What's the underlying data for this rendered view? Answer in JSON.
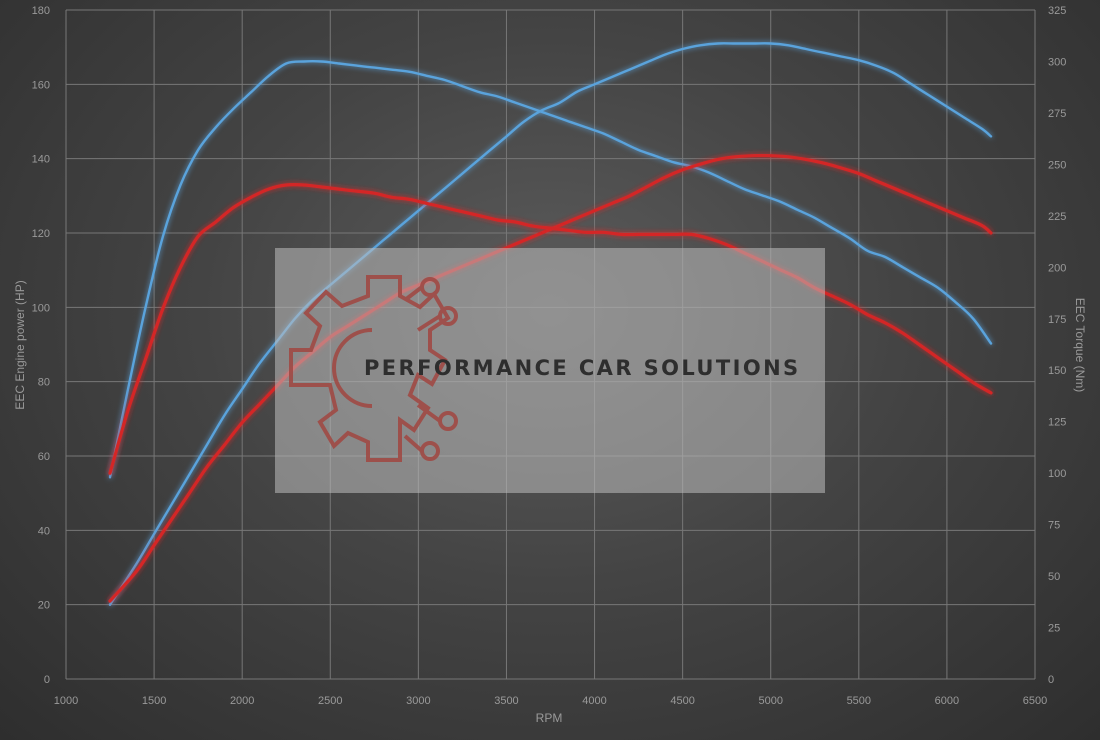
{
  "chart_data": {
    "type": "line",
    "xlabel": "RPM",
    "ylabel_left": "EEC Engine power (HP)",
    "ylabel_right": "EEC Torque (Nm)",
    "xlim": [
      1000,
      6500
    ],
    "ylim_left": [
      0,
      180
    ],
    "ylim_right": [
      0,
      325
    ],
    "x_ticks": [
      1000,
      1500,
      2000,
      2500,
      3000,
      3500,
      4000,
      4500,
      5000,
      5500,
      6000,
      6500
    ],
    "y_left_ticks": [
      0,
      20,
      40,
      60,
      80,
      100,
      120,
      140,
      160,
      180
    ],
    "y_right_ticks": [
      0,
      25,
      50,
      75,
      100,
      125,
      150,
      175,
      200,
      225,
      250,
      275,
      300,
      325
    ],
    "grid": true,
    "colors": {
      "blue": "#5aa3dc",
      "red": "#d42828"
    },
    "series": [
      {
        "axis": "left",
        "color": "blue",
        "x": [
          1250,
          1400,
          1500,
          1600,
          1700,
          1800,
          1900,
          2000,
          2100,
          2200,
          2300,
          2400,
          2500,
          2600,
          2700,
          2800,
          2900,
          3000,
          3100,
          3200,
          3300,
          3400,
          3500,
          3600,
          3700,
          3800,
          3900,
          4000,
          4100,
          4200,
          4300,
          4400,
          4500,
          4600,
          4700,
          4800,
          4900,
          5000,
          5100,
          5200,
          5300,
          5400,
          5500,
          5600,
          5700,
          5800,
          5900,
          6000,
          6100,
          6200,
          6250
        ],
        "y": [
          20,
          31,
          39,
          47,
          55,
          63,
          71,
          78,
          85,
          91,
          97,
          102,
          106,
          110,
          114,
          118,
          122,
          126,
          130,
          134,
          138,
          142,
          146,
          150,
          153,
          155,
          158,
          160,
          162,
          164,
          166,
          168,
          169.5,
          170.5,
          171,
          171,
          171,
          171,
          170.5,
          169.5,
          168.5,
          167.5,
          166.5,
          165,
          163,
          160,
          157,
          154,
          151,
          148,
          146
        ]
      },
      {
        "axis": "right",
        "color": "blue",
        "x": [
          1250,
          1350,
          1450,
          1550,
          1650,
          1750,
          1850,
          1950,
          2050,
          2150,
          2250,
          2350,
          2450,
          2550,
          2650,
          2750,
          2850,
          2950,
          3050,
          3150,
          3250,
          3350,
          3450,
          3550,
          3650,
          3750,
          3850,
          3950,
          4050,
          4150,
          4250,
          4350,
          4450,
          4550,
          4650,
          4750,
          4850,
          4950,
          5050,
          5150,
          5250,
          5350,
          5450,
          5550,
          5650,
          5750,
          5850,
          5950,
          6050,
          6150,
          6250
        ],
        "y": [
          98,
          140,
          180,
          215,
          240,
          257,
          268,
          277,
          285,
          293,
          299,
          300,
          300,
          299,
          298,
          297,
          296,
          295,
          293,
          291,
          288,
          285,
          283,
          280,
          277,
          274,
          271,
          268,
          265,
          261,
          257,
          254,
          251,
          249,
          246,
          242,
          238,
          235,
          232,
          228,
          224,
          219,
          214,
          208,
          205,
          200,
          195,
          190,
          183,
          175,
          163
        ]
      },
      {
        "axis": "left",
        "color": "red",
        "x": [
          1250,
          1400,
          1500,
          1600,
          1700,
          1800,
          1900,
          2000,
          2100,
          2200,
          2300,
          2400,
          2500,
          2600,
          2700,
          2800,
          2900,
          3000,
          3100,
          3200,
          3300,
          3400,
          3500,
          3600,
          3700,
          3800,
          3900,
          4000,
          4100,
          4200,
          4300,
          4400,
          4500,
          4600,
          4700,
          4800,
          4900,
          5000,
          5100,
          5200,
          5300,
          5400,
          5500,
          5600,
          5700,
          5800,
          5900,
          6000,
          6100,
          6200,
          6250
        ],
        "y": [
          21,
          29,
          36,
          43,
          50,
          57,
          63,
          69,
          74,
          79,
          84,
          88,
          92,
          95,
          98,
          101,
          104,
          106,
          108,
          110,
          112,
          114,
          116,
          118,
          120,
          122,
          124,
          126,
          128,
          130,
          132.5,
          135,
          137,
          138.5,
          139.8,
          140.5,
          140.8,
          140.8,
          140.5,
          139.8,
          138.8,
          137.5,
          136,
          134,
          132,
          130,
          128,
          126,
          124,
          122,
          120
        ]
      },
      {
        "axis": "right",
        "color": "red",
        "x": [
          1250,
          1350,
          1450,
          1550,
          1650,
          1750,
          1850,
          1950,
          2050,
          2150,
          2250,
          2350,
          2450,
          2550,
          2650,
          2750,
          2850,
          2950,
          3050,
          3150,
          3250,
          3350,
          3450,
          3550,
          3650,
          3750,
          3850,
          3950,
          4050,
          4150,
          4250,
          4350,
          4450,
          4550,
          4650,
          4750,
          4850,
          4950,
          5050,
          5150,
          5250,
          5350,
          5450,
          5550,
          5650,
          5750,
          5850,
          5950,
          6050,
          6150,
          6250
        ],
        "y": [
          100,
          130,
          155,
          180,
          200,
          215,
          222,
          229,
          234,
          238,
          240,
          240,
          239,
          238,
          237,
          236,
          234,
          233,
          231,
          229,
          227,
          225,
          223,
          222,
          220,
          219,
          218,
          217,
          217,
          216,
          216,
          216,
          216,
          216,
          214,
          211,
          207,
          203,
          199,
          195,
          190,
          186,
          182,
          177,
          173,
          168,
          162,
          156,
          150,
          144,
          139
        ]
      }
    ]
  },
  "watermark": {
    "text": "PERFORMANCE CAR SOLUTIONS"
  }
}
